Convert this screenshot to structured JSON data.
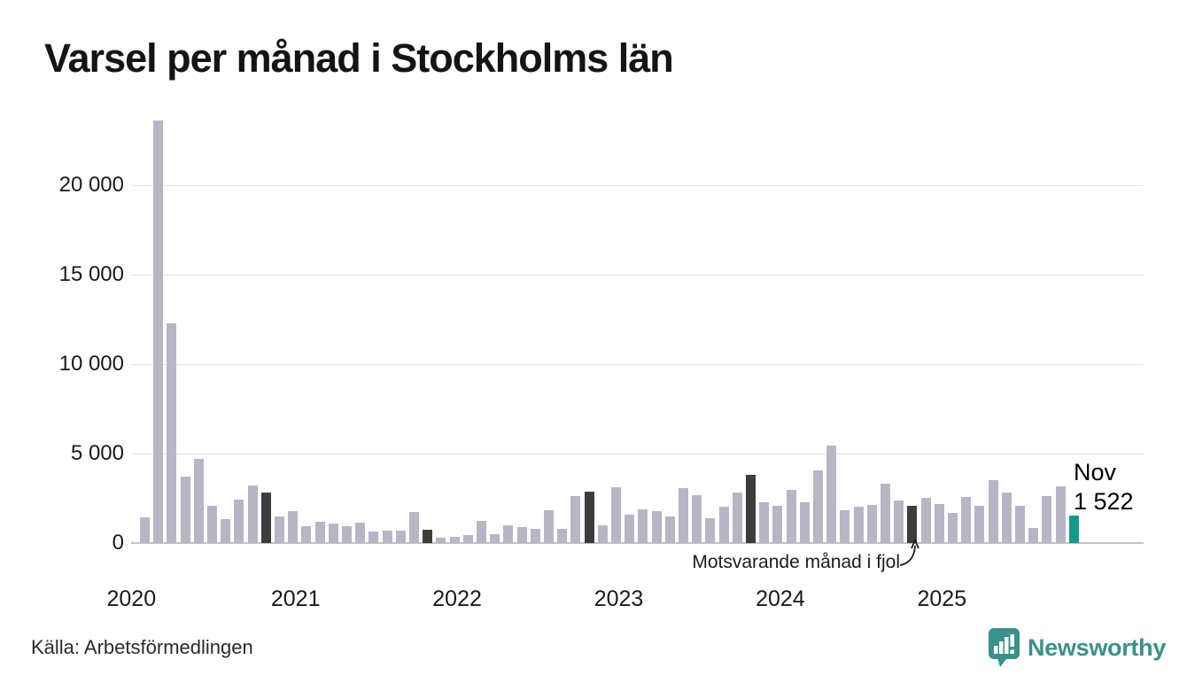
{
  "title": "Varsel per månad i Stockholms län",
  "source": "Källa: Arbetsförmedlingen",
  "branding": {
    "name": "Newsworthy",
    "logo_icon": "pin-with-bar-chart-and-exclamation",
    "color": "#3a9189"
  },
  "annotation": {
    "text": "Motsvarande månad i fjol",
    "points_to": "nov 2024"
  },
  "highlight": {
    "month_label": "Nov",
    "value_label": "1 522"
  },
  "colors": {
    "bar_normal": "#b8b5c4",
    "bar_same_month_last_year": "#3d3d3f",
    "bar_current": "#149a8d",
    "gridline": "#e3e3e3",
    "axis_line": "#c4c4c4",
    "text": "#1a1a1a"
  },
  "chart_data": {
    "type": "bar",
    "title": "Varsel per månad i Stockholms län",
    "xlabel": "",
    "ylabel": "",
    "ylim": [
      0,
      24000
    ],
    "grid": "horizontal",
    "legend": "none",
    "y_ticks": [
      0,
      5000,
      10000,
      15000,
      20000
    ],
    "y_tick_labels": [
      "0",
      "5 000",
      "10 000",
      "15 000",
      "20 000"
    ],
    "x_year_labels": [
      "2020",
      "2021",
      "2022",
      "2023",
      "2024",
      "2025"
    ],
    "bar_kinds": {
      "normal": "ordinary month",
      "fjol": "same month last year (Nov)",
      "current": "latest month (Nov 2025)"
    },
    "months": [
      {
        "label": "feb 2020",
        "value": 1450,
        "kind": "normal"
      },
      {
        "label": "mar 2020",
        "value": 23600,
        "kind": "normal"
      },
      {
        "label": "apr 2020",
        "value": 12300,
        "kind": "normal"
      },
      {
        "label": "maj 2020",
        "value": 3700,
        "kind": "normal"
      },
      {
        "label": "jun 2020",
        "value": 4700,
        "kind": "normal"
      },
      {
        "label": "jul 2020",
        "value": 2100,
        "kind": "normal"
      },
      {
        "label": "aug 2020",
        "value": 1350,
        "kind": "normal"
      },
      {
        "label": "sep 2020",
        "value": 2450,
        "kind": "normal"
      },
      {
        "label": "okt 2020",
        "value": 3200,
        "kind": "normal"
      },
      {
        "label": "nov 2020",
        "value": 2800,
        "kind": "fjol"
      },
      {
        "label": "dec 2020",
        "value": 1500,
        "kind": "normal"
      },
      {
        "label": "jan 2021",
        "value": 1770,
        "kind": "normal"
      },
      {
        "label": "feb 2021",
        "value": 950,
        "kind": "normal"
      },
      {
        "label": "mar 2021",
        "value": 1190,
        "kind": "normal"
      },
      {
        "label": "apr 2021",
        "value": 1100,
        "kind": "normal"
      },
      {
        "label": "maj 2021",
        "value": 930,
        "kind": "normal"
      },
      {
        "label": "jun 2021",
        "value": 1160,
        "kind": "normal"
      },
      {
        "label": "jul 2021",
        "value": 650,
        "kind": "normal"
      },
      {
        "label": "aug 2021",
        "value": 680,
        "kind": "normal"
      },
      {
        "label": "sep 2021",
        "value": 680,
        "kind": "normal"
      },
      {
        "label": "okt 2021",
        "value": 1720,
        "kind": "normal"
      },
      {
        "label": "nov 2021",
        "value": 750,
        "kind": "fjol"
      },
      {
        "label": "dec 2021",
        "value": 320,
        "kind": "normal"
      },
      {
        "label": "jan 2022",
        "value": 360,
        "kind": "normal"
      },
      {
        "label": "feb 2022",
        "value": 450,
        "kind": "normal"
      },
      {
        "label": "mar 2022",
        "value": 1230,
        "kind": "normal"
      },
      {
        "label": "apr 2022",
        "value": 500,
        "kind": "normal"
      },
      {
        "label": "maj 2022",
        "value": 990,
        "kind": "normal"
      },
      {
        "label": "jun 2022",
        "value": 880,
        "kind": "normal"
      },
      {
        "label": "jul 2022",
        "value": 780,
        "kind": "normal"
      },
      {
        "label": "aug 2022",
        "value": 1840,
        "kind": "normal"
      },
      {
        "label": "sep 2022",
        "value": 810,
        "kind": "normal"
      },
      {
        "label": "okt 2022",
        "value": 2630,
        "kind": "normal"
      },
      {
        "label": "nov 2022",
        "value": 2880,
        "kind": "fjol"
      },
      {
        "label": "dec 2022",
        "value": 980,
        "kind": "normal"
      },
      {
        "label": "jan 2023",
        "value": 3100,
        "kind": "normal"
      },
      {
        "label": "feb 2023",
        "value": 1600,
        "kind": "normal"
      },
      {
        "label": "mar 2023",
        "value": 1900,
        "kind": "normal"
      },
      {
        "label": "apr 2023",
        "value": 1800,
        "kind": "normal"
      },
      {
        "label": "maj 2023",
        "value": 1490,
        "kind": "normal"
      },
      {
        "label": "jun 2023",
        "value": 3060,
        "kind": "normal"
      },
      {
        "label": "jul 2023",
        "value": 2650,
        "kind": "normal"
      },
      {
        "label": "aug 2023",
        "value": 1390,
        "kind": "normal"
      },
      {
        "label": "sep 2023",
        "value": 2020,
        "kind": "normal"
      },
      {
        "label": "okt 2023",
        "value": 2830,
        "kind": "normal"
      },
      {
        "label": "nov 2023",
        "value": 3790,
        "kind": "fjol"
      },
      {
        "label": "dec 2023",
        "value": 2290,
        "kind": "normal"
      },
      {
        "label": "jan 2024",
        "value": 2100,
        "kind": "normal"
      },
      {
        "label": "feb 2024",
        "value": 2980,
        "kind": "normal"
      },
      {
        "label": "mar 2024",
        "value": 2290,
        "kind": "normal"
      },
      {
        "label": "apr 2024",
        "value": 4080,
        "kind": "normal"
      },
      {
        "label": "maj 2024",
        "value": 5440,
        "kind": "normal"
      },
      {
        "label": "jun 2024",
        "value": 1840,
        "kind": "normal"
      },
      {
        "label": "jul 2024",
        "value": 2050,
        "kind": "normal"
      },
      {
        "label": "aug 2024",
        "value": 2130,
        "kind": "normal"
      },
      {
        "label": "sep 2024",
        "value": 3340,
        "kind": "normal"
      },
      {
        "label": "okt 2024",
        "value": 2360,
        "kind": "normal"
      },
      {
        "label": "nov 2024",
        "value": 2080,
        "kind": "fjol"
      },
      {
        "label": "dec 2024",
        "value": 2520,
        "kind": "normal"
      },
      {
        "label": "jan 2025",
        "value": 2200,
        "kind": "normal"
      },
      {
        "label": "feb 2025",
        "value": 1700,
        "kind": "normal"
      },
      {
        "label": "mar 2025",
        "value": 2550,
        "kind": "normal"
      },
      {
        "label": "apr 2025",
        "value": 2100,
        "kind": "normal"
      },
      {
        "label": "maj 2025",
        "value": 3500,
        "kind": "normal"
      },
      {
        "label": "jun 2025",
        "value": 2800,
        "kind": "normal"
      },
      {
        "label": "jul 2025",
        "value": 2100,
        "kind": "normal"
      },
      {
        "label": "aug 2025",
        "value": 850,
        "kind": "normal"
      },
      {
        "label": "sep 2025",
        "value": 2600,
        "kind": "normal"
      },
      {
        "label": "okt 2025",
        "value": 3150,
        "kind": "normal"
      },
      {
        "label": "nov 2025",
        "value": 1522,
        "kind": "current"
      }
    ]
  }
}
